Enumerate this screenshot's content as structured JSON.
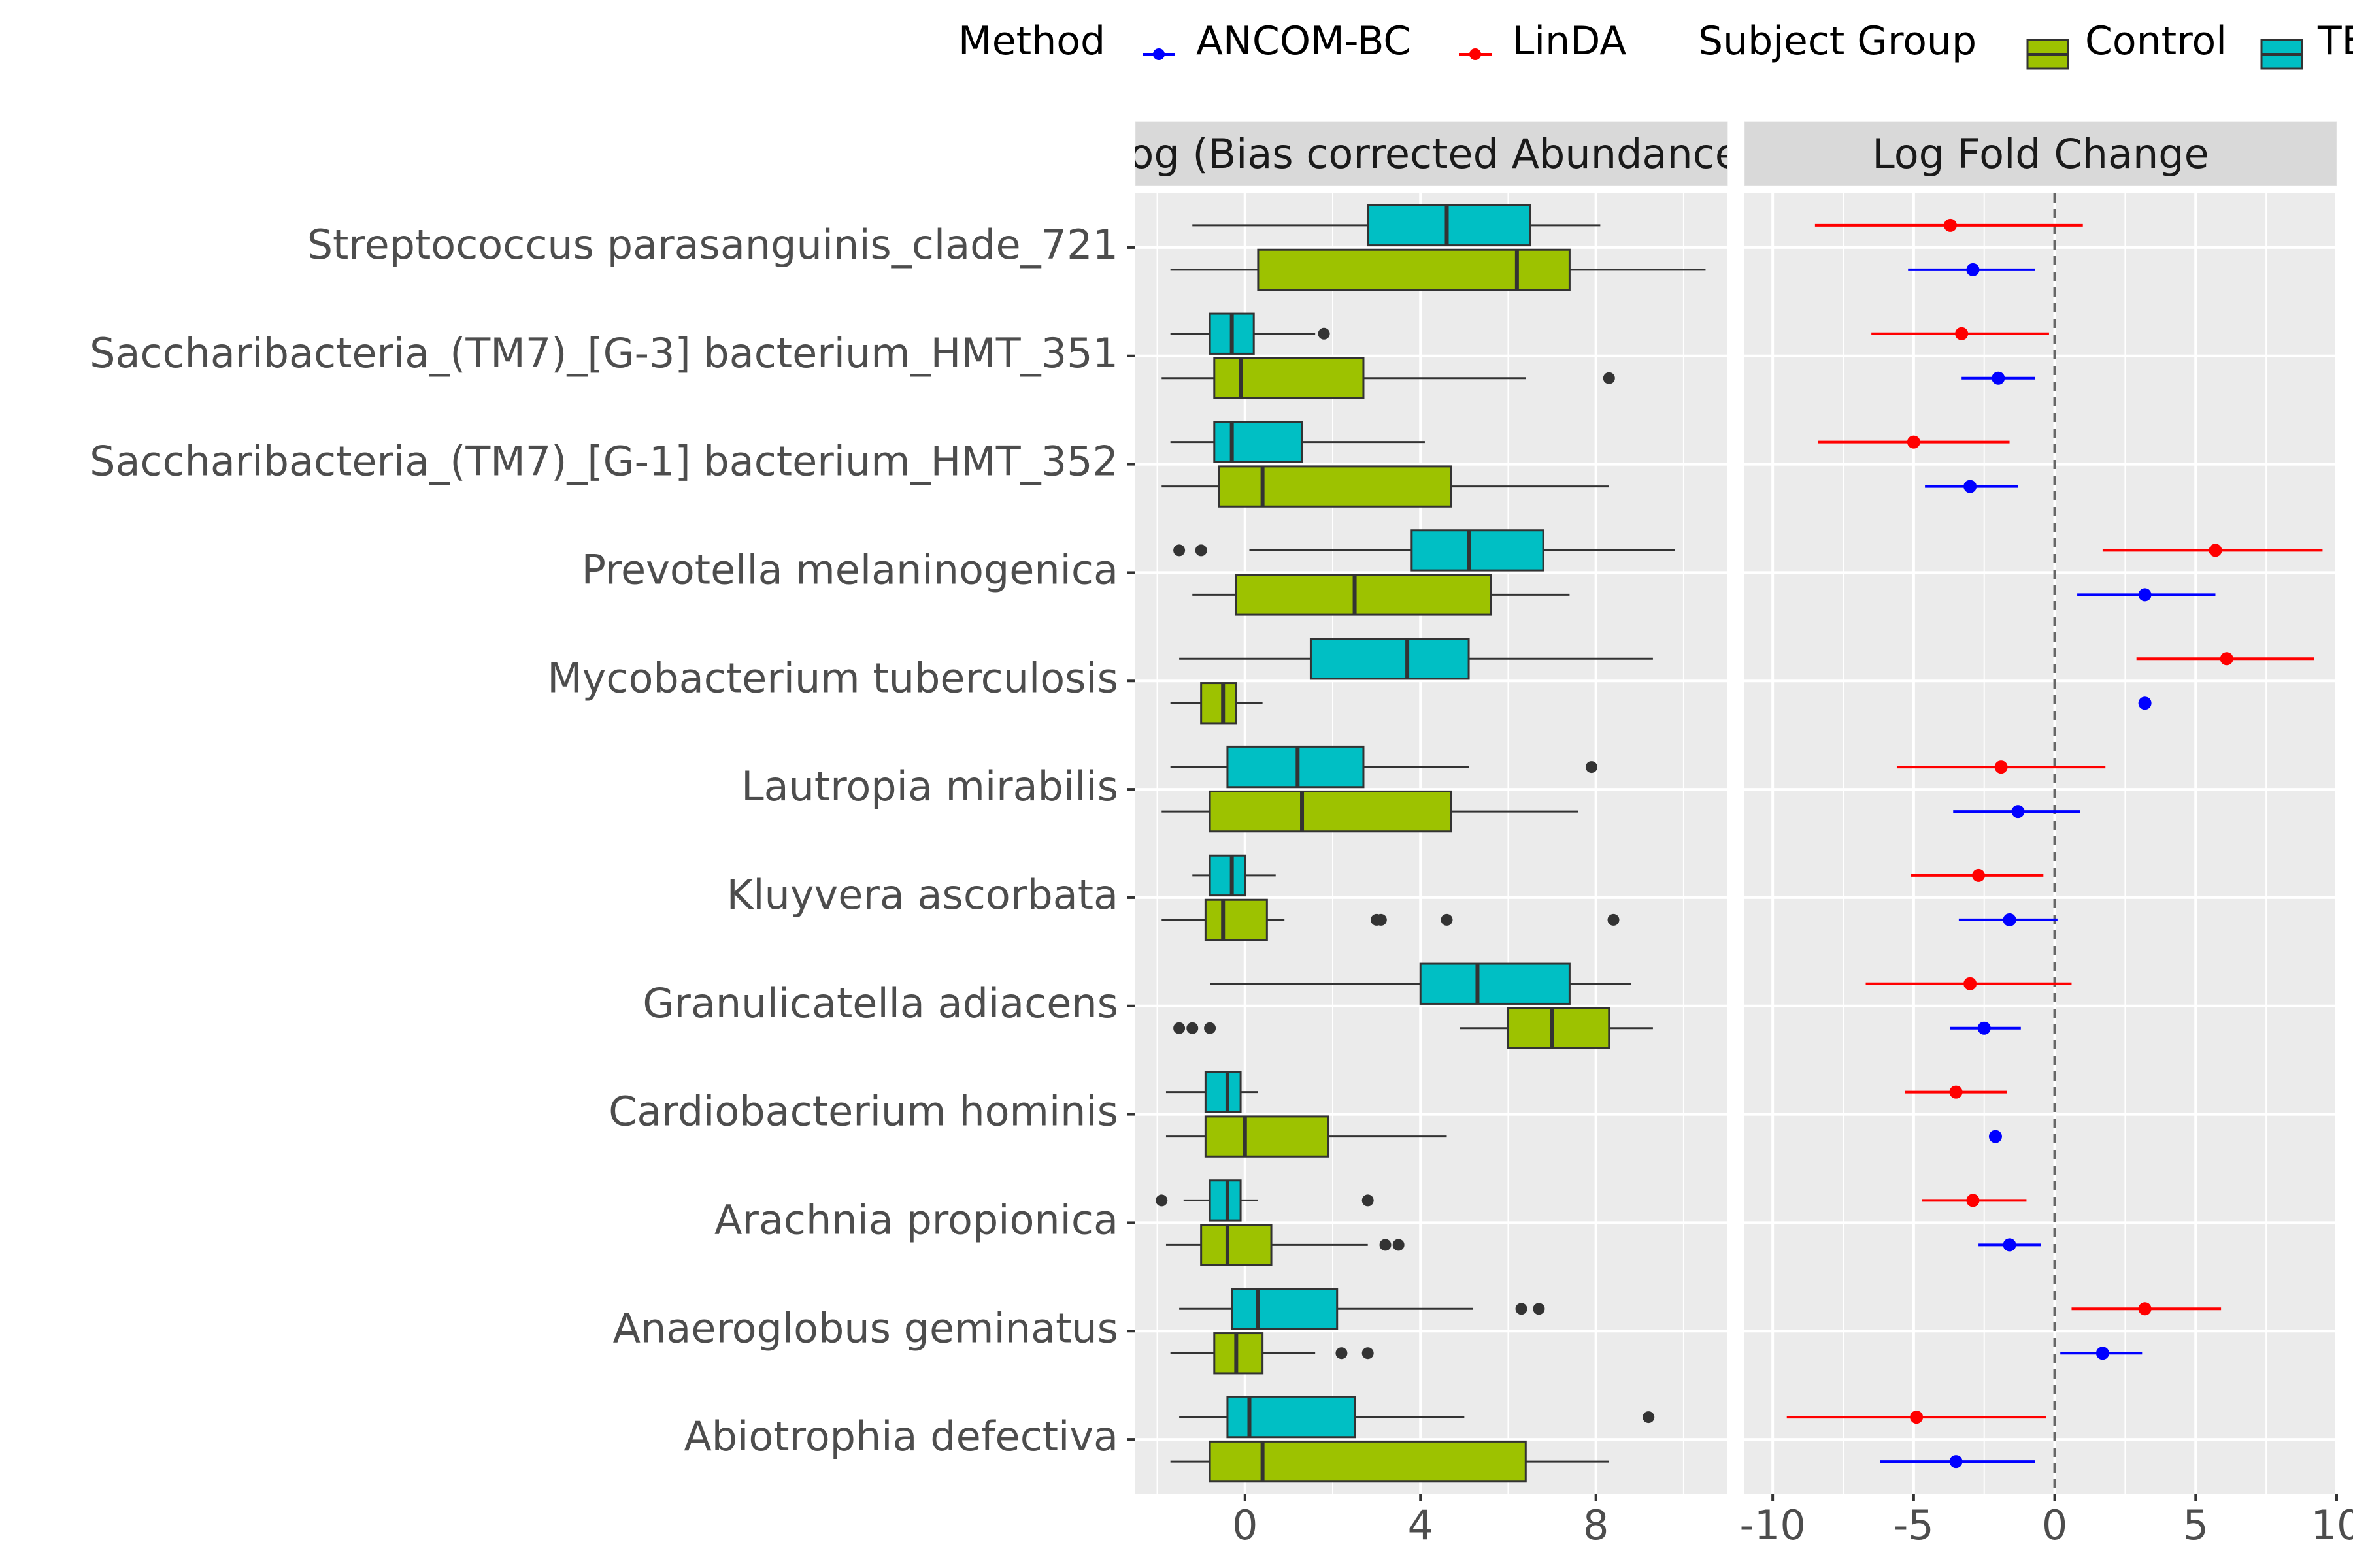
{
  "legend": {
    "method_title": "Method",
    "methods": [
      {
        "label": "ANCOM-BC",
        "color": "#0000FF"
      },
      {
        "label": "LinDA",
        "color": "#FF0000"
      }
    ],
    "group_title": "Subject Group",
    "groups": [
      {
        "label": "Control",
        "color": "#9DC200"
      },
      {
        "label": "TB",
        "color": "#00BFC4"
      }
    ]
  },
  "panels": {
    "left_strip": "Log (Bias corrected Abundance)",
    "right_strip": "Log Fold Change"
  },
  "chart_data": [
    {
      "type": "boxplot",
      "panel": "Log (Bias corrected Abundance)",
      "orientation": "horizontal",
      "xlim": [
        -2.5,
        11
      ],
      "x_ticks": [
        0,
        4,
        8
      ],
      "grid": true,
      "categories": [
        "Streptococcus parasanguinis_clade_721",
        "Saccharibacteria_(TM7)_[G-3] bacterium_HMT_351",
        "Saccharibacteria_(TM7)_[G-1] bacterium_HMT_352",
        "Prevotella melaninogenica",
        "Mycobacterium tuberculosis",
        "Lautropia mirabilis",
        "Kluyvera ascorbata",
        "Granulicatella adiacens",
        "Cardiobacterium hominis",
        "Arachnia propionica",
        "Anaeroglobus geminatus",
        "Abiotrophia defectiva"
      ],
      "series": [
        {
          "name": "TB",
          "boxes": [
            {
              "min": -1.2,
              "q1": 2.8,
              "median": 4.6,
              "q3": 6.5,
              "max": 8.1,
              "outliers": []
            },
            {
              "min": -1.7,
              "q1": -0.8,
              "median": -0.3,
              "q3": 0.2,
              "max": 1.6,
              "outliers": [
                1.8
              ]
            },
            {
              "min": -1.7,
              "q1": -0.7,
              "median": -0.3,
              "q3": 1.3,
              "max": 4.1,
              "outliers": []
            },
            {
              "min": 0.1,
              "q1": 3.8,
              "median": 5.1,
              "q3": 6.8,
              "max": 9.8,
              "outliers": [
                -1.5,
                -1.0
              ]
            },
            {
              "min": -1.5,
              "q1": 1.5,
              "median": 3.7,
              "q3": 5.1,
              "max": 9.3,
              "outliers": []
            },
            {
              "min": -1.7,
              "q1": -0.4,
              "median": 1.2,
              "q3": 2.7,
              "max": 5.1,
              "outliers": [
                7.9
              ]
            },
            {
              "min": -1.2,
              "q1": -0.8,
              "median": -0.3,
              "q3": 0.0,
              "max": 0.7,
              "outliers": []
            },
            {
              "min": -0.8,
              "q1": 4.0,
              "median": 5.3,
              "q3": 7.4,
              "max": 8.8,
              "outliers": []
            },
            {
              "min": -1.8,
              "q1": -0.9,
              "median": -0.4,
              "q3": -0.1,
              "max": 0.3,
              "outliers": []
            },
            {
              "min": -1.4,
              "q1": -0.8,
              "median": -0.4,
              "q3": -0.1,
              "max": 0.3,
              "outliers": [
                -1.9,
                2.8
              ]
            },
            {
              "min": -1.5,
              "q1": -0.3,
              "median": 0.3,
              "q3": 2.1,
              "max": 5.2,
              "outliers": [
                6.3,
                6.7
              ]
            },
            {
              "min": -1.5,
              "q1": -0.4,
              "median": 0.1,
              "q3": 2.5,
              "max": 5.0,
              "outliers": [
                9.2
              ]
            }
          ]
        },
        {
          "name": "Control",
          "boxes": [
            {
              "min": -1.7,
              "q1": 0.3,
              "median": 6.2,
              "q3": 7.4,
              "max": 10.5,
              "outliers": []
            },
            {
              "min": -1.9,
              "q1": -0.7,
              "median": -0.1,
              "q3": 2.7,
              "max": 6.4,
              "outliers": [
                8.3
              ]
            },
            {
              "min": -1.9,
              "q1": -0.6,
              "median": 0.4,
              "q3": 4.7,
              "max": 8.3,
              "outliers": []
            },
            {
              "min": -1.2,
              "q1": -0.2,
              "median": 2.5,
              "q3": 5.6,
              "max": 7.4,
              "outliers": []
            },
            {
              "min": -1.7,
              "q1": -1.0,
              "median": -0.5,
              "q3": -0.2,
              "max": 0.4,
              "outliers": []
            },
            {
              "min": -1.9,
              "q1": -0.8,
              "median": 1.3,
              "q3": 4.7,
              "max": 7.6,
              "outliers": []
            },
            {
              "min": -1.9,
              "q1": -0.9,
              "median": -0.5,
              "q3": 0.5,
              "max": 0.9,
              "outliers": [
                3.0,
                3.1,
                4.6,
                8.4
              ]
            },
            {
              "min": 4.9,
              "q1": 6.0,
              "median": 7.0,
              "q3": 8.3,
              "max": 9.3,
              "outliers": [
                -1.5,
                -1.2,
                -0.8
              ]
            },
            {
              "min": -1.8,
              "q1": -0.9,
              "median": 0.0,
              "q3": 1.9,
              "max": 4.6,
              "outliers": []
            },
            {
              "min": -1.8,
              "q1": -1.0,
              "median": -0.4,
              "q3": 0.6,
              "max": 2.8,
              "outliers": [
                3.2,
                3.5
              ]
            },
            {
              "min": -1.7,
              "q1": -0.7,
              "median": -0.2,
              "q3": 0.4,
              "max": 1.6,
              "outliers": [
                2.2,
                2.8
              ]
            },
            {
              "min": -1.7,
              "q1": -0.8,
              "median": 0.4,
              "q3": 6.4,
              "max": 8.3,
              "outliers": []
            }
          ]
        }
      ]
    },
    {
      "type": "pointrange",
      "panel": "Log Fold Change",
      "orientation": "horizontal",
      "xlim": [
        -11,
        10
      ],
      "x_ticks": [
        -10,
        -5,
        0,
        5,
        10
      ],
      "reference_line": 0,
      "grid": true,
      "categories": [
        "Streptococcus parasanguinis_clade_721",
        "Saccharibacteria_(TM7)_[G-3] bacterium_HMT_351",
        "Saccharibacteria_(TM7)_[G-1] bacterium_HMT_352",
        "Prevotella melaninogenica",
        "Mycobacterium tuberculosis",
        "Lautropia mirabilis",
        "Kluyvera ascorbata",
        "Granulicatella adiacens",
        "Cardiobacterium hominis",
        "Arachnia propionica",
        "Anaeroglobus geminatus",
        "Abiotrophia defectiva"
      ],
      "series": [
        {
          "name": "LinDA",
          "estimates": [
            -3.7,
            -3.3,
            -5.0,
            5.7,
            6.1,
            -1.9,
            -2.7,
            -3.0,
            -3.5,
            -2.9,
            3.2,
            -4.9
          ],
          "lower": [
            -8.5,
            -6.5,
            -8.4,
            1.7,
            2.9,
            -5.6,
            -5.1,
            -6.7,
            -5.3,
            -4.7,
            0.6,
            -9.5
          ],
          "upper": [
            1.0,
            -0.2,
            -1.6,
            9.5,
            9.2,
            1.8,
            -0.4,
            0.6,
            -1.7,
            -1.0,
            5.9,
            -0.3
          ]
        },
        {
          "name": "ANCOM-BC",
          "estimates": [
            -2.9,
            -2.0,
            -3.0,
            3.2,
            3.2,
            -1.3,
            -1.6,
            -2.5,
            -2.1,
            -1.6,
            1.7,
            -3.5
          ],
          "lower": [
            -5.2,
            -3.3,
            -4.6,
            0.8,
            3.2,
            -3.6,
            -3.4,
            -3.7,
            -2.1,
            -2.7,
            0.2,
            -6.2
          ],
          "upper": [
            -0.7,
            -0.7,
            -1.3,
            5.7,
            3.2,
            0.9,
            0.1,
            -1.2,
            -2.1,
            -0.5,
            3.1,
            -0.7
          ]
        }
      ]
    }
  ]
}
